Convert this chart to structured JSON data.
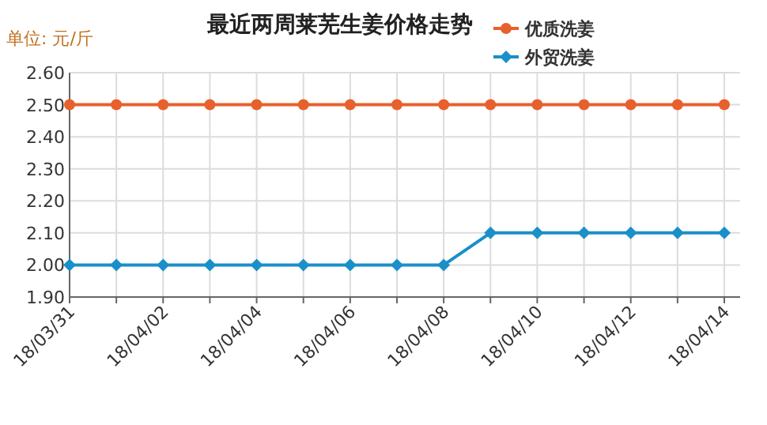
{
  "chart_data": {
    "type": "line",
    "title": "最近两周莱芜生姜价格走势",
    "annotations": [
      "单位: 元/斤"
    ],
    "categories": [
      "18/03/31",
      null,
      "18/04/02",
      null,
      "18/04/04",
      null,
      "18/04/06",
      null,
      "18/04/08",
      null,
      "18/04/10",
      null,
      "18/04/12",
      null,
      "18/04/14"
    ],
    "series": [
      {
        "name": "优质洗姜",
        "color": "#e8602c",
        "marker": "circle",
        "values": [
          2.5,
          2.5,
          2.5,
          2.5,
          2.5,
          2.5,
          2.5,
          2.5,
          2.5,
          2.5,
          2.5,
          2.5,
          2.5,
          2.5,
          2.5
        ]
      },
      {
        "name": "外贸洗姜",
        "color": "#1a8fc9",
        "marker": "diamond",
        "values": [
          2.0,
          2.0,
          2.0,
          2.0,
          2.0,
          2.0,
          2.0,
          2.0,
          2.0,
          2.1,
          2.1,
          2.1,
          2.1,
          2.1,
          2.1
        ]
      }
    ],
    "ylim": [
      1.9,
      2.6
    ],
    "yticks": [
      {
        "value": 1.9,
        "label": "1.90"
      },
      {
        "value": 2.0,
        "label": "2.00"
      },
      {
        "value": 2.1,
        "label": "2.10"
      },
      {
        "value": 2.2,
        "label": "2.20"
      },
      {
        "value": 2.3,
        "label": "2.30"
      },
      {
        "value": 2.4,
        "label": "2.40"
      },
      {
        "value": 2.5,
        "label": "2.50"
      },
      {
        "value": 2.6,
        "label": "2.60"
      }
    ],
    "grid": true,
    "legend": "top right",
    "line_style": "solid"
  }
}
